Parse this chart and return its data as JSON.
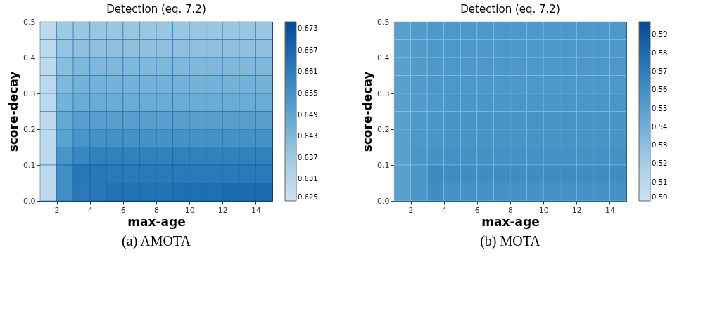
{
  "chart_data": [
    {
      "type": "heatmap",
      "title": "Detection (eq. 7.2)",
      "xlabel": "max-age",
      "ylabel": "score-decay",
      "annotations": [
        "(a) AMOTA"
      ],
      "x": [
        1.5,
        2.5,
        3.5,
        4.5,
        5.5,
        6.5,
        7.5,
        8.5,
        9.5,
        10.5,
        11.5,
        12.5,
        13.5,
        14.5
      ],
      "y": [
        0.475,
        0.425,
        0.375,
        0.325,
        0.275,
        0.225,
        0.175,
        0.125,
        0.075,
        0.025
      ],
      "cells": [
        [
          0.63,
          0.637,
          0.638,
          0.638,
          0.638,
          0.638,
          0.638,
          0.638,
          0.638,
          0.638,
          0.638,
          0.638,
          0.638,
          0.638
        ],
        [
          0.63,
          0.639,
          0.64,
          0.64,
          0.64,
          0.64,
          0.64,
          0.64,
          0.64,
          0.64,
          0.64,
          0.64,
          0.64,
          0.64
        ],
        [
          0.63,
          0.641,
          0.643,
          0.643,
          0.643,
          0.643,
          0.643,
          0.643,
          0.643,
          0.643,
          0.643,
          0.643,
          0.643,
          0.643
        ],
        [
          0.63,
          0.643,
          0.645,
          0.645,
          0.645,
          0.645,
          0.645,
          0.645,
          0.645,
          0.645,
          0.645,
          0.645,
          0.645,
          0.645
        ],
        [
          0.63,
          0.645,
          0.647,
          0.647,
          0.647,
          0.647,
          0.647,
          0.647,
          0.647,
          0.647,
          0.647,
          0.647,
          0.647,
          0.647
        ],
        [
          0.63,
          0.648,
          0.651,
          0.651,
          0.651,
          0.651,
          0.651,
          0.651,
          0.651,
          0.651,
          0.651,
          0.651,
          0.651,
          0.651
        ],
        [
          0.63,
          0.65,
          0.654,
          0.655,
          0.655,
          0.655,
          0.655,
          0.655,
          0.655,
          0.655,
          0.655,
          0.655,
          0.655,
          0.655
        ],
        [
          0.63,
          0.654,
          0.658,
          0.66,
          0.66,
          0.66,
          0.66,
          0.66,
          0.66,
          0.66,
          0.66,
          0.66,
          0.66,
          0.66
        ],
        [
          0.63,
          0.656,
          0.663,
          0.663,
          0.662,
          0.662,
          0.662,
          0.662,
          0.662,
          0.662,
          0.662,
          0.662,
          0.662,
          0.662
        ],
        [
          0.63,
          0.656,
          0.662,
          0.663,
          0.664,
          0.664,
          0.664,
          0.664,
          0.665,
          0.665,
          0.665,
          0.666,
          0.666,
          0.666
        ]
      ],
      "xlim": [
        1,
        15
      ],
      "xticks": [
        2,
        4,
        6,
        8,
        10,
        12,
        14
      ],
      "ylim": [
        0.0,
        0.5
      ],
      "yticks": [
        {
          "value": 0.0,
          "label": "0.0"
        },
        0.1,
        0.2,
        0.3,
        0.4,
        0.5
      ],
      "clim": [
        0.625,
        0.675
      ],
      "cticks": [
        0.625,
        0.631,
        0.637,
        0.643,
        0.649,
        0.655,
        0.661,
        0.667,
        0.673
      ]
    },
    {
      "type": "heatmap",
      "title": "Detection (eq. 7.2)",
      "xlabel": "max-age",
      "ylabel": "score-decay",
      "annotations": [
        "(b) MOTA"
      ],
      "x": [
        1.5,
        2.5,
        3.5,
        4.5,
        5.5,
        6.5,
        7.5,
        8.5,
        9.5,
        10.5,
        11.5,
        12.5,
        13.5,
        14.5
      ],
      "y": [
        0.475,
        0.425,
        0.375,
        0.325,
        0.275,
        0.225,
        0.175,
        0.125,
        0.075,
        0.025
      ],
      "cells": [
        [
          0.55,
          0.553,
          0.555,
          0.555,
          0.555,
          0.555,
          0.555,
          0.555,
          0.555,
          0.555,
          0.555,
          0.555,
          0.555,
          0.555
        ],
        [
          0.55,
          0.553,
          0.555,
          0.555,
          0.555,
          0.555,
          0.555,
          0.555,
          0.555,
          0.555,
          0.555,
          0.555,
          0.555,
          0.555
        ],
        [
          0.55,
          0.553,
          0.555,
          0.555,
          0.555,
          0.555,
          0.555,
          0.555,
          0.555,
          0.555,
          0.555,
          0.555,
          0.555,
          0.555
        ],
        [
          0.55,
          0.553,
          0.555,
          0.555,
          0.555,
          0.555,
          0.555,
          0.555,
          0.555,
          0.555,
          0.555,
          0.555,
          0.555,
          0.555
        ],
        [
          0.55,
          0.553,
          0.555,
          0.556,
          0.556,
          0.556,
          0.556,
          0.556,
          0.556,
          0.556,
          0.556,
          0.556,
          0.556,
          0.556
        ],
        [
          0.55,
          0.554,
          0.556,
          0.557,
          0.557,
          0.557,
          0.557,
          0.557,
          0.557,
          0.557,
          0.557,
          0.557,
          0.557,
          0.557
        ],
        [
          0.55,
          0.555,
          0.556,
          0.557,
          0.557,
          0.557,
          0.557,
          0.557,
          0.557,
          0.557,
          0.557,
          0.557,
          0.557,
          0.557
        ],
        [
          0.55,
          0.556,
          0.558,
          0.559,
          0.559,
          0.559,
          0.559,
          0.559,
          0.559,
          0.559,
          0.559,
          0.559,
          0.559,
          0.559
        ],
        [
          0.55,
          0.556,
          0.563,
          0.562,
          0.561,
          0.561,
          0.561,
          0.561,
          0.561,
          0.561,
          0.561,
          0.561,
          0.561,
          0.561
        ],
        [
          0.55,
          0.556,
          0.561,
          0.559,
          0.558,
          0.558,
          0.558,
          0.558,
          0.558,
          0.558,
          0.558,
          0.558,
          0.558,
          0.558
        ]
      ],
      "xlim": [
        1,
        15
      ],
      "xticks": [
        2,
        4,
        6,
        8,
        10,
        12,
        14
      ],
      "ylim": [
        0.0,
        0.5
      ],
      "yticks": [
        {
          "value": 0.0,
          "label": "0.0"
        },
        0.1,
        0.2,
        0.3,
        0.4,
        0.5
      ],
      "clim": [
        0.5,
        0.597
      ],
      "cticks": [
        {
          "value": 0.5,
          "label": "0.50"
        },
        0.51,
        0.52,
        0.53,
        0.54,
        0.55,
        0.56,
        0.57,
        0.58,
        0.59
      ]
    }
  ]
}
